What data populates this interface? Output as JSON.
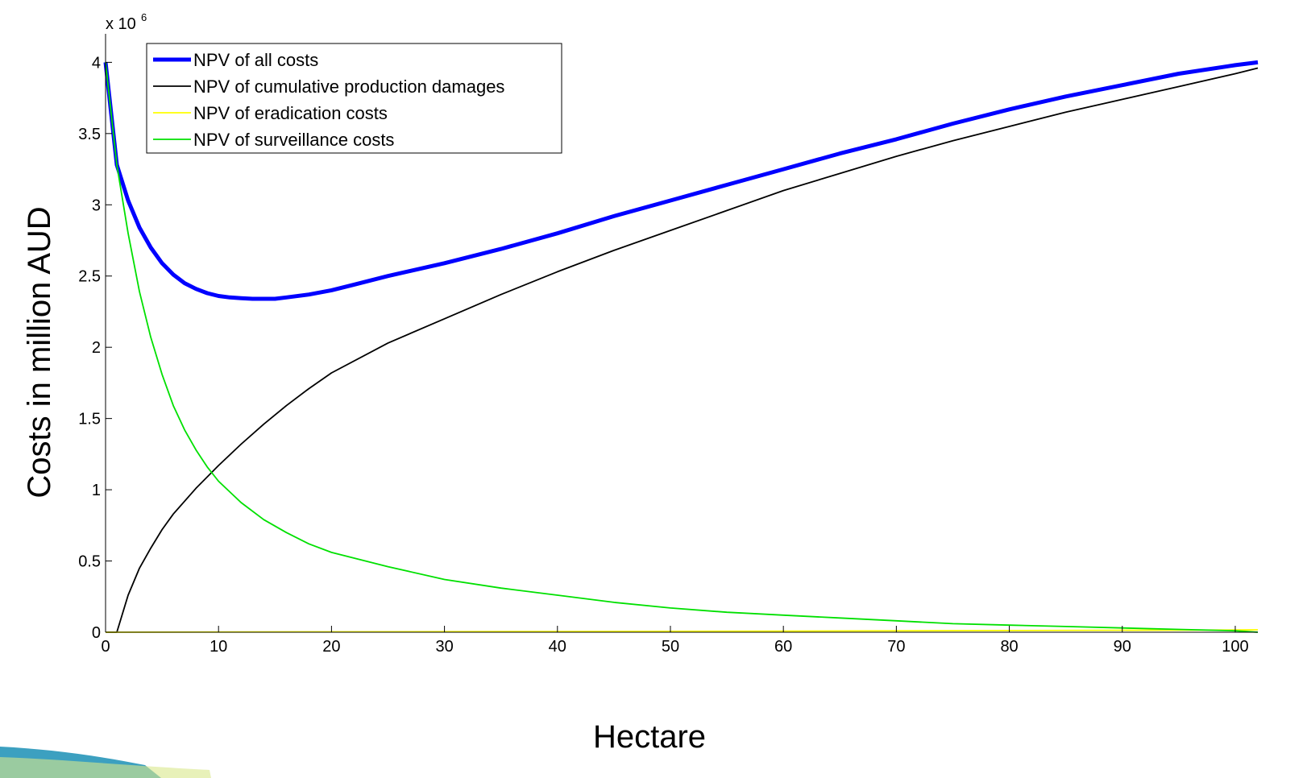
{
  "chart_data": {
    "type": "line",
    "title": "",
    "xlabel": "Hectare",
    "ylabel": "Costs in million AUD",
    "y_multiplier_base": "x 10",
    "y_multiplier_exp": "6",
    "xlim": [
      0,
      102
    ],
    "ylim": [
      0,
      4.2
    ],
    "x_ticks": [
      0,
      10,
      20,
      30,
      40,
      50,
      60,
      70,
      80,
      90,
      100
    ],
    "x_tick_labels": [
      "0",
      "10",
      "20",
      "30",
      "40",
      "50",
      "60",
      "70",
      "80",
      "90",
      "100"
    ],
    "y_ticks": [
      0,
      0.5,
      1,
      1.5,
      2,
      2.5,
      3,
      3.5,
      4
    ],
    "y_tick_labels": [
      "0",
      "0.5",
      "1",
      "1.5",
      "2",
      "2.5",
      "3",
      "3.5",
      "4"
    ],
    "grid": false,
    "legend_position": "top-left",
    "series": [
      {
        "name": "NPV of all costs",
        "color": "#0000ff",
        "x": [
          0,
          1,
          2,
          3,
          4,
          5,
          6,
          7,
          8,
          9,
          10,
          11,
          12,
          13,
          14,
          15,
          16,
          18,
          20,
          22,
          25,
          30,
          35,
          40,
          45,
          50,
          55,
          60,
          65,
          70,
          75,
          80,
          85,
          90,
          95,
          100,
          102
        ],
        "values": [
          4.0,
          3.28,
          3.03,
          2.84,
          2.7,
          2.59,
          2.51,
          2.45,
          2.41,
          2.38,
          2.36,
          2.35,
          2.345,
          2.34,
          2.34,
          2.34,
          2.35,
          2.37,
          2.4,
          2.44,
          2.5,
          2.59,
          2.69,
          2.8,
          2.92,
          3.03,
          3.14,
          3.25,
          3.36,
          3.46,
          3.57,
          3.67,
          3.76,
          3.84,
          3.92,
          3.98,
          4.0
        ]
      },
      {
        "name": "NPV of cumulative production damages",
        "color": "#000000",
        "x": [
          0,
          1,
          2,
          3,
          4,
          5,
          6,
          8,
          10,
          12,
          14,
          16,
          18,
          20,
          25,
          30,
          35,
          40,
          45,
          50,
          55,
          60,
          65,
          70,
          75,
          80,
          85,
          90,
          95,
          100,
          102
        ],
        "values": [
          0,
          0,
          0.26,
          0.45,
          0.59,
          0.72,
          0.83,
          1.01,
          1.17,
          1.32,
          1.46,
          1.59,
          1.71,
          1.82,
          2.03,
          2.2,
          2.37,
          2.53,
          2.68,
          2.82,
          2.96,
          3.1,
          3.22,
          3.34,
          3.45,
          3.55,
          3.65,
          3.74,
          3.83,
          3.92,
          3.96
        ]
      },
      {
        "name": "NPV of eradication costs",
        "color": "#ffff00",
        "x": [
          0,
          20,
          40,
          60,
          80,
          100,
          102
        ],
        "values": [
          0.0,
          0.003,
          0.005,
          0.008,
          0.012,
          0.016,
          0.017
        ]
      },
      {
        "name": "NPV of surveillance costs",
        "color": "#00e000",
        "x": [
          0,
          1,
          2,
          3,
          4,
          5,
          6,
          7,
          8,
          9,
          10,
          12,
          14,
          16,
          18,
          20,
          25,
          30,
          35,
          40,
          45,
          50,
          55,
          60,
          65,
          70,
          75,
          80,
          85,
          90,
          95,
          100,
          102
        ],
        "values": [
          4.0,
          3.28,
          2.8,
          2.39,
          2.07,
          1.81,
          1.59,
          1.42,
          1.28,
          1.16,
          1.06,
          0.91,
          0.79,
          0.7,
          0.62,
          0.56,
          0.46,
          0.37,
          0.31,
          0.26,
          0.21,
          0.17,
          0.14,
          0.12,
          0.1,
          0.08,
          0.06,
          0.05,
          0.04,
          0.03,
          0.02,
          0.01,
          0.0
        ]
      }
    ]
  }
}
